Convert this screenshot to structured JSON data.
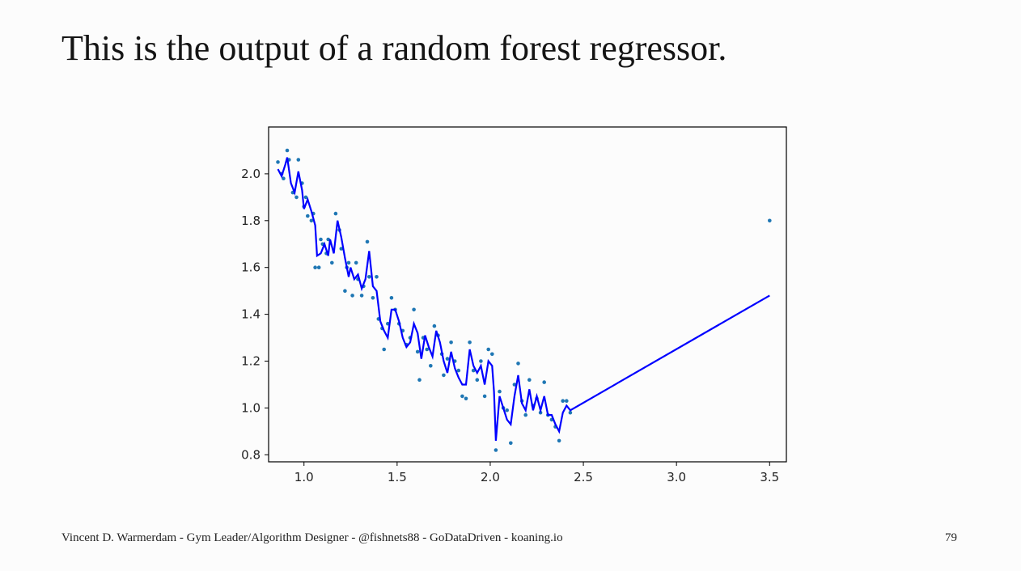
{
  "slide": {
    "title": "This is the output of a random forest regressor.",
    "footer": "Vincent D. Warmerdam - Gym Leader/Algorithm Designer - @fishnets88 - GoDataDriven - koaning.io",
    "page_number": "79"
  },
  "chart_data": {
    "type": "scatter",
    "xlim": [
      0.81,
      3.59
    ],
    "ylim": [
      0.77,
      2.2
    ],
    "xticks": [
      1.0,
      1.5,
      2.0,
      2.5,
      3.0,
      3.5
    ],
    "xtick_labels": [
      "1.0",
      "1.5",
      "2.0",
      "2.5",
      "3.0",
      "3.5"
    ],
    "yticks": [
      0.8,
      1.0,
      1.2,
      1.4,
      1.6,
      1.8,
      2.0
    ],
    "ytick_labels": [
      "0.8",
      "1.0",
      "1.2",
      "1.4",
      "1.6",
      "1.8",
      "2.0"
    ],
    "grid": false,
    "colors": {
      "points": "#1f77b4",
      "prediction": "#0000ff"
    },
    "series": [
      {
        "type": "scatter",
        "points": [
          [
            0.86,
            2.05
          ],
          [
            0.88,
            2.0
          ],
          [
            0.89,
            1.98
          ],
          [
            0.91,
            2.1
          ],
          [
            0.92,
            2.06
          ],
          [
            0.94,
            1.92
          ],
          [
            0.96,
            1.9
          ],
          [
            0.97,
            2.06
          ],
          [
            0.99,
            1.96
          ],
          [
            1.0,
            1.86
          ],
          [
            1.01,
            1.9
          ],
          [
            1.02,
            1.82
          ],
          [
            1.04,
            1.8
          ],
          [
            1.05,
            1.83
          ],
          [
            1.06,
            1.6
          ],
          [
            1.08,
            1.6
          ],
          [
            1.09,
            1.72
          ],
          [
            1.1,
            1.7
          ],
          [
            1.12,
            1.66
          ],
          [
            1.13,
            1.72
          ],
          [
            1.15,
            1.62
          ],
          [
            1.17,
            1.83
          ],
          [
            1.19,
            1.76
          ],
          [
            1.2,
            1.68
          ],
          [
            1.22,
            1.5
          ],
          [
            1.23,
            1.6
          ],
          [
            1.24,
            1.62
          ],
          [
            1.26,
            1.48
          ],
          [
            1.28,
            1.62
          ],
          [
            1.29,
            1.55
          ],
          [
            1.31,
            1.48
          ],
          [
            1.32,
            1.52
          ],
          [
            1.34,
            1.71
          ],
          [
            1.35,
            1.56
          ],
          [
            1.37,
            1.47
          ],
          [
            1.39,
            1.56
          ],
          [
            1.4,
            1.38
          ],
          [
            1.42,
            1.34
          ],
          [
            1.43,
            1.25
          ],
          [
            1.45,
            1.36
          ],
          [
            1.47,
            1.47
          ],
          [
            1.49,
            1.42
          ],
          [
            1.51,
            1.36
          ],
          [
            1.53,
            1.33
          ],
          [
            1.55,
            1.27
          ],
          [
            1.57,
            1.3
          ],
          [
            1.59,
            1.42
          ],
          [
            1.61,
            1.24
          ],
          [
            1.62,
            1.12
          ],
          [
            1.64,
            1.3
          ],
          [
            1.66,
            1.25
          ],
          [
            1.68,
            1.18
          ],
          [
            1.7,
            1.35
          ],
          [
            1.72,
            1.31
          ],
          [
            1.74,
            1.23
          ],
          [
            1.75,
            1.14
          ],
          [
            1.77,
            1.21
          ],
          [
            1.79,
            1.28
          ],
          [
            1.81,
            1.2
          ],
          [
            1.83,
            1.16
          ],
          [
            1.85,
            1.05
          ],
          [
            1.87,
            1.04
          ],
          [
            1.89,
            1.28
          ],
          [
            1.91,
            1.16
          ],
          [
            1.93,
            1.12
          ],
          [
            1.95,
            1.2
          ],
          [
            1.97,
            1.05
          ],
          [
            1.99,
            1.25
          ],
          [
            2.01,
            1.23
          ],
          [
            2.03,
            0.82
          ],
          [
            2.05,
            1.07
          ],
          [
            2.07,
            1.0
          ],
          [
            2.09,
            0.99
          ],
          [
            2.11,
            0.85
          ],
          [
            2.13,
            1.1
          ],
          [
            2.15,
            1.19
          ],
          [
            2.17,
            1.03
          ],
          [
            2.19,
            0.97
          ],
          [
            2.21,
            1.12
          ],
          [
            2.23,
            1.01
          ],
          [
            2.25,
            1.04
          ],
          [
            2.27,
            0.98
          ],
          [
            2.29,
            1.11
          ],
          [
            2.31,
            0.97
          ],
          [
            2.33,
            0.95
          ],
          [
            2.35,
            0.92
          ],
          [
            2.37,
            0.86
          ],
          [
            2.39,
            1.03
          ],
          [
            2.41,
            1.03
          ],
          [
            2.43,
            0.98
          ],
          [
            3.5,
            1.8
          ]
        ]
      },
      {
        "type": "line",
        "points": [
          [
            0.86,
            2.02
          ],
          [
            0.88,
            1.99
          ],
          [
            0.9,
            2.04
          ],
          [
            0.91,
            2.07
          ],
          [
            0.93,
            1.96
          ],
          [
            0.95,
            1.92
          ],
          [
            0.97,
            2.01
          ],
          [
            0.99,
            1.93
          ],
          [
            1.0,
            1.85
          ],
          [
            1.02,
            1.89
          ],
          [
            1.04,
            1.84
          ],
          [
            1.06,
            1.78
          ],
          [
            1.07,
            1.65
          ],
          [
            1.09,
            1.66
          ],
          [
            1.11,
            1.7
          ],
          [
            1.13,
            1.65
          ],
          [
            1.14,
            1.72
          ],
          [
            1.16,
            1.66
          ],
          [
            1.18,
            1.8
          ],
          [
            1.2,
            1.73
          ],
          [
            1.22,
            1.64
          ],
          [
            1.24,
            1.56
          ],
          [
            1.25,
            1.6
          ],
          [
            1.27,
            1.55
          ],
          [
            1.29,
            1.57
          ],
          [
            1.31,
            1.51
          ],
          [
            1.33,
            1.55
          ],
          [
            1.35,
            1.67
          ],
          [
            1.37,
            1.52
          ],
          [
            1.39,
            1.5
          ],
          [
            1.41,
            1.37
          ],
          [
            1.43,
            1.33
          ],
          [
            1.45,
            1.3
          ],
          [
            1.47,
            1.42
          ],
          [
            1.49,
            1.42
          ],
          [
            1.51,
            1.37
          ],
          [
            1.53,
            1.3
          ],
          [
            1.55,
            1.26
          ],
          [
            1.57,
            1.28
          ],
          [
            1.59,
            1.36
          ],
          [
            1.61,
            1.32
          ],
          [
            1.63,
            1.21
          ],
          [
            1.65,
            1.31
          ],
          [
            1.67,
            1.26
          ],
          [
            1.69,
            1.22
          ],
          [
            1.71,
            1.33
          ],
          [
            1.73,
            1.28
          ],
          [
            1.75,
            1.2
          ],
          [
            1.77,
            1.15
          ],
          [
            1.79,
            1.24
          ],
          [
            1.81,
            1.17
          ],
          [
            1.83,
            1.13
          ],
          [
            1.85,
            1.1
          ],
          [
            1.87,
            1.1
          ],
          [
            1.89,
            1.25
          ],
          [
            1.91,
            1.18
          ],
          [
            1.93,
            1.15
          ],
          [
            1.95,
            1.18
          ],
          [
            1.97,
            1.1
          ],
          [
            1.99,
            1.2
          ],
          [
            2.01,
            1.18
          ],
          [
            2.02,
            1.07
          ],
          [
            2.03,
            0.86
          ],
          [
            2.05,
            1.05
          ],
          [
            2.07,
            1.0
          ],
          [
            2.09,
            0.95
          ],
          [
            2.11,
            0.93
          ],
          [
            2.13,
            1.05
          ],
          [
            2.15,
            1.14
          ],
          [
            2.17,
            1.02
          ],
          [
            2.19,
            0.99
          ],
          [
            2.21,
            1.08
          ],
          [
            2.23,
            0.99
          ],
          [
            2.25,
            1.05
          ],
          [
            2.27,
            0.99
          ],
          [
            2.29,
            1.05
          ],
          [
            2.31,
            0.97
          ],
          [
            2.33,
            0.97
          ],
          [
            2.35,
            0.93
          ],
          [
            2.37,
            0.9
          ],
          [
            2.39,
            0.98
          ],
          [
            2.41,
            1.01
          ],
          [
            2.43,
            0.99
          ],
          [
            3.5,
            1.48
          ]
        ]
      }
    ]
  }
}
